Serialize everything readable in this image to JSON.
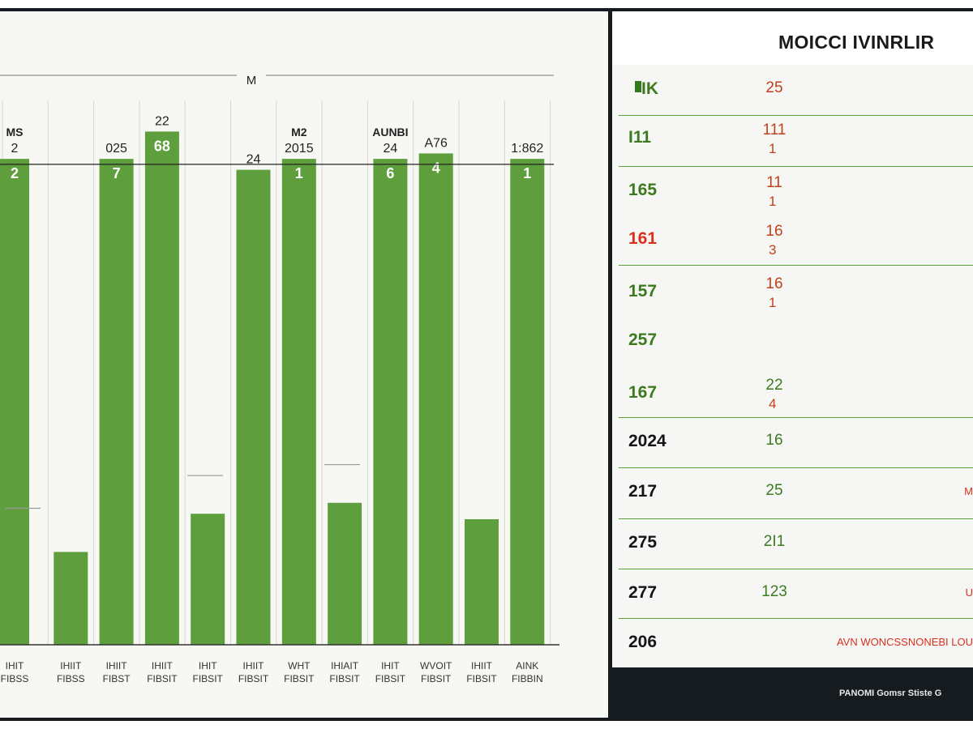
{
  "chart_data": {
    "type": "bar",
    "title": "M",
    "ylim": [
      0,
      100
    ],
    "reference_value": 88,
    "categories": [
      {
        "line1": "IHIT",
        "line2": "FIBSS"
      },
      {
        "line1": "IHIIT",
        "line2": "FIBSS"
      },
      {
        "line1": "IHIIT",
        "line2": "FIBST"
      },
      {
        "line1": "IHIIT",
        "line2": "FIBSIT"
      },
      {
        "line1": "IHIT",
        "line2": "FIBSIT"
      },
      {
        "line1": "IHIIT",
        "line2": "FIBSIT"
      },
      {
        "line1": "WHT",
        "line2": "FIBSIT"
      },
      {
        "line1": "IHIAIT",
        "line2": "FIBSIT"
      },
      {
        "line1": "IHIT",
        "line2": "FIBSIT"
      },
      {
        "line1": "WVOIT",
        "line2": "FIBSIT"
      },
      {
        "line1": "IHIIT",
        "line2": "FIBSIT"
      },
      {
        "line1": "AINK",
        "line2": "FIBBIN"
      }
    ],
    "values": [
      89,
      17,
      89,
      94,
      24,
      87,
      89,
      26,
      89,
      90,
      23,
      89
    ],
    "bar_top_labels": [
      "2",
      "",
      "7",
      "68",
      "",
      "",
      "1",
      "",
      "6",
      "4",
      "",
      "1"
    ],
    "bar_above_labels": [
      "2",
      "",
      "025",
      "22",
      "",
      "24",
      "2015",
      "",
      "24",
      "A76",
      "",
      "1:862"
    ],
    "secondary_labels": [
      "MS",
      "",
      "",
      "",
      "",
      "",
      "M2",
      "",
      "AUNBI",
      "",
      "",
      ""
    ],
    "level_markers": [
      {
        "bar": 0,
        "value": 25
      },
      {
        "bar": 4,
        "value": 31
      },
      {
        "bar": 7,
        "value": 33
      }
    ]
  },
  "table": {
    "title": "MOICCI IVINRLIR",
    "rows": [
      {
        "label": "IK",
        "label_style": "green-swatch",
        "value": "25",
        "value_style": "orange",
        "value2": "",
        "side": ""
      },
      {
        "label": "I11",
        "label_style": "green",
        "value": "111",
        "value_style": "orange",
        "value2": "1",
        "side": ""
      },
      {
        "label": "165",
        "label_style": "green",
        "value": "11",
        "value_style": "orange",
        "value2": "1",
        "side": ""
      },
      {
        "label": "161",
        "label_style": "red",
        "value": "16",
        "value_style": "orange",
        "value2": "3",
        "side": ""
      },
      {
        "label": "157",
        "label_style": "green",
        "value": "16",
        "value_style": "orange",
        "value2": "1",
        "side": ""
      },
      {
        "label": "257",
        "label_style": "green",
        "value": "",
        "value_style": "",
        "value2": "",
        "side": ""
      },
      {
        "label": "167",
        "label_style": "green",
        "value": "22",
        "value_style": "green",
        "value2": "4",
        "side": ""
      },
      {
        "label": "2024",
        "label_style": "dark",
        "value": "16",
        "value_style": "green",
        "value2": "",
        "side": ""
      },
      {
        "label": "217",
        "label_style": "dark",
        "value": "25",
        "value_style": "green",
        "value2": "",
        "side": "M"
      },
      {
        "label": "275",
        "label_style": "dark",
        "value": "2I1",
        "value_style": "green",
        "value2": "",
        "side": ""
      },
      {
        "label": "277",
        "label_style": "dark",
        "value": "123",
        "value_style": "green",
        "value2": "",
        "side": "U"
      },
      {
        "label": "206",
        "label_style": "dark",
        "value": "",
        "value_style": "",
        "value2": "",
        "side": "AVN WONCSSNONEBI LOU"
      }
    ]
  },
  "footer": {
    "text": "PANOMI Gomsr Stiste G"
  },
  "colors": {
    "bar": "#5e9e3c",
    "accent_red": "#d8321d",
    "accent_orange": "#c0421b",
    "dark": "#151b1f"
  }
}
